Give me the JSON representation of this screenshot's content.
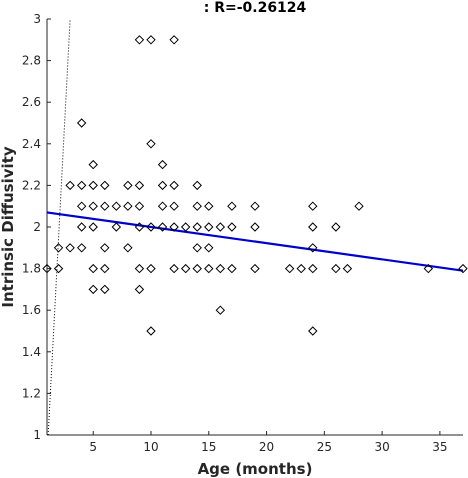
{
  "chart_data": {
    "type": "scatter",
    "title": ": R=-0.26124",
    "xlabel": "Age (months)",
    "ylabel": "Intrinsic Diffusivity",
    "xlim": [
      1,
      37
    ],
    "ylim": [
      1,
      3
    ],
    "x_ticks": [
      5,
      10,
      15,
      20,
      25,
      30,
      35
    ],
    "y_ticks": [
      1,
      1.2,
      1.4,
      1.6,
      1.8,
      2,
      2.2,
      2.4,
      2.6,
      2.8,
      3
    ],
    "grid": false,
    "legend": "none",
    "marker": "open-diamond",
    "marker_color": "#000000",
    "fit_line": {
      "x": [
        1,
        37
      ],
      "y": [
        2.07,
        1.79
      ],
      "color": "#0000cc"
    },
    "reference_line": {
      "x": [
        1.1,
        3.0
      ],
      "y": [
        1.0,
        3.0
      ],
      "style": "dotted",
      "color": "#000000"
    },
    "points": [
      [
        1,
        1.8
      ],
      [
        2,
        1.8
      ],
      [
        2,
        1.9
      ],
      [
        3,
        1.9
      ],
      [
        3,
        2.2
      ],
      [
        4,
        2.5
      ],
      [
        4,
        2.2
      ],
      [
        4,
        2.1
      ],
      [
        4,
        2.0
      ],
      [
        4,
        1.9
      ],
      [
        5,
        2.3
      ],
      [
        5,
        2.2
      ],
      [
        5,
        2.1
      ],
      [
        5,
        2.0
      ],
      [
        5,
        1.8
      ],
      [
        5,
        1.7
      ],
      [
        6,
        2.2
      ],
      [
        6,
        2.1
      ],
      [
        6,
        1.9
      ],
      [
        6,
        1.8
      ],
      [
        6,
        1.7
      ],
      [
        7,
        2.1
      ],
      [
        7,
        2.0
      ],
      [
        8,
        2.2
      ],
      [
        8,
        2.1
      ],
      [
        8,
        1.9
      ],
      [
        9,
        2.9
      ],
      [
        9,
        2.2
      ],
      [
        9,
        2.1
      ],
      [
        9,
        2.0
      ],
      [
        9,
        1.8
      ],
      [
        9,
        1.7
      ],
      [
        10,
        2.9
      ],
      [
        10,
        2.4
      ],
      [
        10,
        2.0
      ],
      [
        10,
        1.8
      ],
      [
        10,
        1.5
      ],
      [
        11,
        2.3
      ],
      [
        11,
        2.2
      ],
      [
        11,
        2.1
      ],
      [
        11,
        2.0
      ],
      [
        12,
        2.9
      ],
      [
        12,
        2.2
      ],
      [
        12,
        2.1
      ],
      [
        12,
        2.0
      ],
      [
        12,
        1.8
      ],
      [
        13,
        2.0
      ],
      [
        13,
        1.8
      ],
      [
        14,
        2.2
      ],
      [
        14,
        2.1
      ],
      [
        14,
        2.0
      ],
      [
        14,
        1.9
      ],
      [
        14,
        1.8
      ],
      [
        15,
        2.1
      ],
      [
        15,
        2.0
      ],
      [
        15,
        1.9
      ],
      [
        15,
        1.8
      ],
      [
        16,
        2.0
      ],
      [
        16,
        1.8
      ],
      [
        16,
        1.6
      ],
      [
        17,
        2.1
      ],
      [
        17,
        2.0
      ],
      [
        17,
        1.8
      ],
      [
        19,
        2.1
      ],
      [
        19,
        2.0
      ],
      [
        19,
        1.8
      ],
      [
        22,
        1.8
      ],
      [
        23,
        1.8
      ],
      [
        24,
        2.1
      ],
      [
        24,
        2.0
      ],
      [
        24,
        1.9
      ],
      [
        24,
        1.8
      ],
      [
        24,
        1.5
      ],
      [
        26,
        2.0
      ],
      [
        26,
        1.8
      ],
      [
        27,
        1.8
      ],
      [
        28,
        2.1
      ],
      [
        34,
        1.8
      ],
      [
        37,
        1.8
      ]
    ]
  }
}
